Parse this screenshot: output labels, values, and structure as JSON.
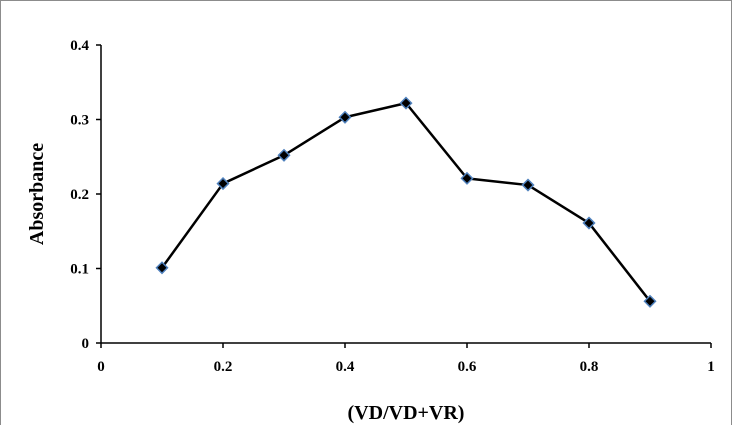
{
  "chart_data": {
    "type": "line",
    "title": "",
    "xlabel": "(VD/VD+VR)",
    "ylabel": "Absorbance",
    "xlim": [
      0,
      1
    ],
    "ylim": [
      0,
      0.4
    ],
    "x_ticks": [
      "0",
      "0.2",
      "0.4",
      "0.6",
      "0.8",
      "1"
    ],
    "y_ticks": [
      "0",
      "0.1",
      "0.2",
      "0.3",
      "0.4"
    ],
    "grid": false,
    "legend": "none",
    "series": [
      {
        "x": [
          0.1,
          0.2,
          0.3,
          0.4,
          0.5,
          0.6,
          0.7,
          0.8,
          0.9
        ],
        "y": [
          0.101,
          0.214,
          0.252,
          0.303,
          0.322,
          0.221,
          0.212,
          0.161,
          0.056
        ],
        "line_color": "#000000",
        "marker": "diamond",
        "marker_fill": "#000000",
        "marker_edge": "#4f81bd"
      }
    ]
  }
}
